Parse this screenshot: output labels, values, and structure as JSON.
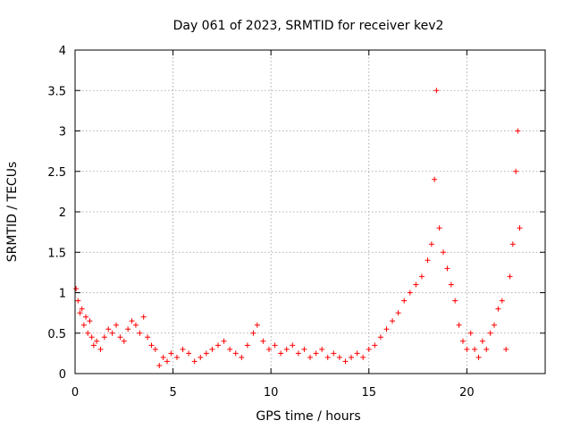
{
  "chart_data": {
    "type": "scatter",
    "title": "Day 061 of 2023, SRMTID for receiver kev2",
    "xlabel": "GPS time / hours",
    "ylabel": "SRMTID / TECUs",
    "xlim": [
      0,
      24
    ],
    "ylim": [
      0,
      4
    ],
    "xticks": [
      0,
      5,
      10,
      15,
      20
    ],
    "yticks": [
      0,
      0.5,
      1,
      1.5,
      2,
      2.5,
      3,
      3.5,
      4
    ],
    "xtick_labels": [
      "0",
      "5",
      "10",
      "15",
      "20"
    ],
    "ytick_labels": [
      "0",
      "0.5",
      "1",
      "1.5",
      "2",
      "2.5",
      "3",
      "3.5",
      "4"
    ],
    "grid": true,
    "marker": "+",
    "series": [
      {
        "name": "SRMTID",
        "color": "#ff0000",
        "x": [
          0.05,
          0.15,
          0.25,
          0.35,
          0.45,
          0.55,
          0.65,
          0.75,
          0.85,
          0.95,
          1.1,
          1.3,
          1.5,
          1.7,
          1.9,
          2.1,
          2.3,
          2.5,
          2.7,
          2.9,
          3.1,
          3.3,
          3.5,
          3.7,
          3.9,
          4.1,
          4.3,
          4.5,
          4.7,
          4.9,
          5.2,
          5.5,
          5.8,
          6.1,
          6.4,
          6.7,
          7.0,
          7.3,
          7.6,
          7.9,
          8.2,
          8.5,
          8.8,
          9.1,
          9.3,
          9.6,
          9.9,
          10.2,
          10.5,
          10.8,
          11.1,
          11.4,
          11.7,
          12.0,
          12.3,
          12.6,
          12.9,
          13.2,
          13.5,
          13.8,
          14.1,
          14.4,
          14.7,
          15.0,
          15.3,
          15.6,
          15.9,
          16.2,
          16.5,
          16.8,
          17.1,
          17.4,
          17.7,
          18.0,
          18.2,
          18.35,
          18.45,
          18.6,
          18.8,
          19.0,
          19.2,
          19.4,
          19.6,
          19.8,
          20.0,
          20.2,
          20.4,
          20.6,
          20.8,
          21.0,
          21.2,
          21.4,
          21.6,
          21.8,
          22.0,
          22.2,
          22.35,
          22.5,
          22.6,
          22.7
        ],
        "y": [
          1.05,
          0.9,
          0.75,
          0.8,
          0.6,
          0.7,
          0.5,
          0.65,
          0.45,
          0.35,
          0.4,
          0.3,
          0.45,
          0.55,
          0.5,
          0.6,
          0.45,
          0.4,
          0.55,
          0.65,
          0.6,
          0.5,
          0.7,
          0.45,
          0.35,
          0.3,
          0.1,
          0.2,
          0.15,
          0.25,
          0.2,
          0.3,
          0.25,
          0.15,
          0.2,
          0.25,
          0.3,
          0.35,
          0.4,
          0.3,
          0.25,
          0.2,
          0.35,
          0.5,
          0.6,
          0.4,
          0.3,
          0.35,
          0.25,
          0.3,
          0.35,
          0.25,
          0.3,
          0.2,
          0.25,
          0.3,
          0.2,
          0.25,
          0.2,
          0.15,
          0.2,
          0.25,
          0.2,
          0.3,
          0.35,
          0.45,
          0.55,
          0.65,
          0.75,
          0.9,
          1.0,
          1.1,
          1.2,
          1.4,
          1.6,
          2.4,
          3.5,
          1.8,
          1.5,
          1.3,
          1.1,
          0.9,
          0.6,
          0.4,
          0.3,
          0.5,
          0.3,
          0.2,
          0.4,
          0.3,
          0.5,
          0.6,
          0.8,
          0.9,
          0.3,
          1.2,
          1.6,
          2.5,
          3.0,
          1.8
        ],
        "values_note": "approximate centers of dense red + markers read from the plot"
      }
    ]
  }
}
